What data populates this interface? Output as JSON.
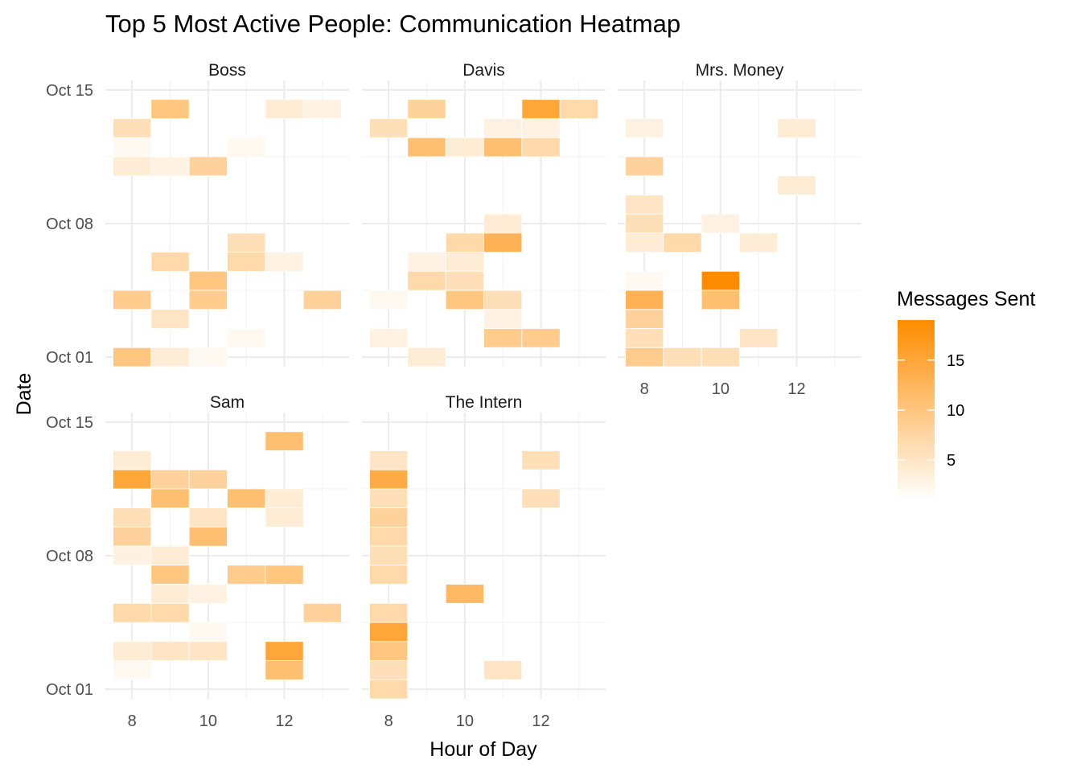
{
  "chart_data": {
    "type": "heatmap",
    "title": "Top 5 Most Active People: Communication Heatmap",
    "xlabel": "Hour of Day",
    "ylabel": "Date",
    "x_range": [
      7.3,
      13.7
    ],
    "x_ticks": [
      8,
      10,
      12
    ],
    "y_range_days": [
      -0.5,
      14.5
    ],
    "y_ticks": [
      {
        "day": 0,
        "label": "Oct 01"
      },
      {
        "day": 7,
        "label": "Oct 08"
      },
      {
        "day": 14,
        "label": "Oct 15"
      }
    ],
    "color_scale": {
      "low": "#ffffff",
      "high": "#ff8c00",
      "min": 1,
      "max": 19
    },
    "legend": {
      "title": "Messages Sent",
      "ticks": [
        5,
        10,
        15
      ],
      "position": "right"
    },
    "panels": [
      {
        "name": "Boss",
        "cells": [
          {
            "date": "Oct 14",
            "hour": 9,
            "value": 10
          },
          {
            "date": "Oct 14",
            "hour": 12,
            "value": 4
          },
          {
            "date": "Oct 14",
            "hour": 13,
            "value": 3
          },
          {
            "date": "Oct 13",
            "hour": 8,
            "value": 6
          },
          {
            "date": "Oct 12",
            "hour": 8,
            "value": 2
          },
          {
            "date": "Oct 12",
            "hour": 11,
            "value": 2
          },
          {
            "date": "Oct 11",
            "hour": 8,
            "value": 4
          },
          {
            "date": "Oct 11",
            "hour": 9,
            "value": 3
          },
          {
            "date": "Oct 11",
            "hour": 10,
            "value": 8
          },
          {
            "date": "Oct 07",
            "hour": 11,
            "value": 6
          },
          {
            "date": "Oct 06",
            "hour": 9,
            "value": 7
          },
          {
            "date": "Oct 06",
            "hour": 11,
            "value": 7
          },
          {
            "date": "Oct 06",
            "hour": 12,
            "value": 3
          },
          {
            "date": "Oct 05",
            "hour": 10,
            "value": 10
          },
          {
            "date": "Oct 04",
            "hour": 8,
            "value": 9
          },
          {
            "date": "Oct 04",
            "hour": 10,
            "value": 9
          },
          {
            "date": "Oct 04",
            "hour": 13,
            "value": 8
          },
          {
            "date": "Oct 03",
            "hour": 9,
            "value": 5
          },
          {
            "date": "Oct 02",
            "hour": 11,
            "value": 2
          },
          {
            "date": "Oct 01",
            "hour": 8,
            "value": 10
          },
          {
            "date": "Oct 01",
            "hour": 9,
            "value": 4
          },
          {
            "date": "Oct 01",
            "hour": 10,
            "value": 2
          }
        ]
      },
      {
        "name": "Davis",
        "cells": [
          {
            "date": "Oct 14",
            "hour": 9,
            "value": 8
          },
          {
            "date": "Oct 14",
            "hour": 12,
            "value": 15
          },
          {
            "date": "Oct 14",
            "hour": 13,
            "value": 7
          },
          {
            "date": "Oct 13",
            "hour": 8,
            "value": 6
          },
          {
            "date": "Oct 13",
            "hour": 11,
            "value": 3
          },
          {
            "date": "Oct 13",
            "hour": 12,
            "value": 3
          },
          {
            "date": "Oct 12",
            "hour": 9,
            "value": 11
          },
          {
            "date": "Oct 12",
            "hour": 10,
            "value": 4
          },
          {
            "date": "Oct 12",
            "hour": 11,
            "value": 11
          },
          {
            "date": "Oct 12",
            "hour": 12,
            "value": 7
          },
          {
            "date": "Oct 08",
            "hour": 11,
            "value": 4
          },
          {
            "date": "Oct 07",
            "hour": 10,
            "value": 7
          },
          {
            "date": "Oct 07",
            "hour": 11,
            "value": 13
          },
          {
            "date": "Oct 06",
            "hour": 9,
            "value": 3
          },
          {
            "date": "Oct 06",
            "hour": 10,
            "value": 4
          },
          {
            "date": "Oct 05",
            "hour": 9,
            "value": 7
          },
          {
            "date": "Oct 05",
            "hour": 10,
            "value": 6
          },
          {
            "date": "Oct 04",
            "hour": 8,
            "value": 2
          },
          {
            "date": "Oct 04",
            "hour": 10,
            "value": 10
          },
          {
            "date": "Oct 04",
            "hour": 11,
            "value": 6
          },
          {
            "date": "Oct 03",
            "hour": 11,
            "value": 3
          },
          {
            "date": "Oct 02",
            "hour": 8,
            "value": 3
          },
          {
            "date": "Oct 02",
            "hour": 11,
            "value": 9
          },
          {
            "date": "Oct 02",
            "hour": 12,
            "value": 9
          },
          {
            "date": "Oct 01",
            "hour": 9,
            "value": 4
          }
        ]
      },
      {
        "name": "Mrs. Money",
        "cells": [
          {
            "date": "Oct 13",
            "hour": 8,
            "value": 3
          },
          {
            "date": "Oct 13",
            "hour": 12,
            "value": 4
          },
          {
            "date": "Oct 11",
            "hour": 8,
            "value": 8
          },
          {
            "date": "Oct 10",
            "hour": 12,
            "value": 4
          },
          {
            "date": "Oct 09",
            "hour": 8,
            "value": 5
          },
          {
            "date": "Oct 08",
            "hour": 8,
            "value": 6
          },
          {
            "date": "Oct 08",
            "hour": 10,
            "value": 3
          },
          {
            "date": "Oct 07",
            "hour": 8,
            "value": 4
          },
          {
            "date": "Oct 07",
            "hour": 9,
            "value": 7
          },
          {
            "date": "Oct 07",
            "hour": 11,
            "value": 4
          },
          {
            "date": "Oct 05",
            "hour": 8,
            "value": 2
          },
          {
            "date": "Oct 05",
            "hour": 10,
            "value": 19
          },
          {
            "date": "Oct 04",
            "hour": 8,
            "value": 13
          },
          {
            "date": "Oct 04",
            "hour": 10,
            "value": 11
          },
          {
            "date": "Oct 03",
            "hour": 8,
            "value": 8
          },
          {
            "date": "Oct 02",
            "hour": 8,
            "value": 6
          },
          {
            "date": "Oct 02",
            "hour": 11,
            "value": 5
          },
          {
            "date": "Oct 01",
            "hour": 8,
            "value": 9
          },
          {
            "date": "Oct 01",
            "hour": 9,
            "value": 6
          },
          {
            "date": "Oct 01",
            "hour": 10,
            "value": 6
          }
        ]
      },
      {
        "name": "Sam",
        "cells": [
          {
            "date": "Oct 14",
            "hour": 12,
            "value": 11
          },
          {
            "date": "Oct 13",
            "hour": 8,
            "value": 4
          },
          {
            "date": "Oct 12",
            "hour": 8,
            "value": 15
          },
          {
            "date": "Oct 12",
            "hour": 9,
            "value": 8
          },
          {
            "date": "Oct 12",
            "hour": 10,
            "value": 8
          },
          {
            "date": "Oct 11",
            "hour": 9,
            "value": 11
          },
          {
            "date": "Oct 11",
            "hour": 11,
            "value": 11
          },
          {
            "date": "Oct 11",
            "hour": 12,
            "value": 4
          },
          {
            "date": "Oct 10",
            "hour": 8,
            "value": 6
          },
          {
            "date": "Oct 10",
            "hour": 10,
            "value": 5
          },
          {
            "date": "Oct 10",
            "hour": 12,
            "value": 4
          },
          {
            "date": "Oct 09",
            "hour": 8,
            "value": 8
          },
          {
            "date": "Oct 09",
            "hour": 10,
            "value": 11
          },
          {
            "date": "Oct 08",
            "hour": 8,
            "value": 3
          },
          {
            "date": "Oct 08",
            "hour": 9,
            "value": 4
          },
          {
            "date": "Oct 07",
            "hour": 9,
            "value": 10
          },
          {
            "date": "Oct 07",
            "hour": 11,
            "value": 9
          },
          {
            "date": "Oct 07",
            "hour": 12,
            "value": 10
          },
          {
            "date": "Oct 06",
            "hour": 9,
            "value": 4
          },
          {
            "date": "Oct 06",
            "hour": 10,
            "value": 3
          },
          {
            "date": "Oct 05",
            "hour": 8,
            "value": 7
          },
          {
            "date": "Oct 05",
            "hour": 9,
            "value": 7
          },
          {
            "date": "Oct 05",
            "hour": 13,
            "value": 8
          },
          {
            "date": "Oct 04",
            "hour": 10,
            "value": 2
          },
          {
            "date": "Oct 03",
            "hour": 8,
            "value": 4
          },
          {
            "date": "Oct 03",
            "hour": 9,
            "value": 5
          },
          {
            "date": "Oct 03",
            "hour": 10,
            "value": 5
          },
          {
            "date": "Oct 03",
            "hour": 12,
            "value": 15
          },
          {
            "date": "Oct 02",
            "hour": 8,
            "value": 2
          },
          {
            "date": "Oct 02",
            "hour": 12,
            "value": 11
          }
        ]
      },
      {
        "name": "The Intern",
        "cells": [
          {
            "date": "Oct 13",
            "hour": 8,
            "value": 5
          },
          {
            "date": "Oct 13",
            "hour": 12,
            "value": 6
          },
          {
            "date": "Oct 12",
            "hour": 8,
            "value": 14
          },
          {
            "date": "Oct 11",
            "hour": 8,
            "value": 6
          },
          {
            "date": "Oct 11",
            "hour": 12,
            "value": 6
          },
          {
            "date": "Oct 10",
            "hour": 8,
            "value": 8
          },
          {
            "date": "Oct 09",
            "hour": 8,
            "value": 7
          },
          {
            "date": "Oct 08",
            "hour": 8,
            "value": 6
          },
          {
            "date": "Oct 07",
            "hour": 8,
            "value": 7
          },
          {
            "date": "Oct 06",
            "hour": 10,
            "value": 12
          },
          {
            "date": "Oct 05",
            "hour": 8,
            "value": 7
          },
          {
            "date": "Oct 04",
            "hour": 8,
            "value": 15
          },
          {
            "date": "Oct 03",
            "hour": 8,
            "value": 10
          },
          {
            "date": "Oct 02",
            "hour": 8,
            "value": 6
          },
          {
            "date": "Oct 02",
            "hour": 11,
            "value": 5
          },
          {
            "date": "Oct 01",
            "hour": 8,
            "value": 7
          }
        ]
      }
    ]
  }
}
